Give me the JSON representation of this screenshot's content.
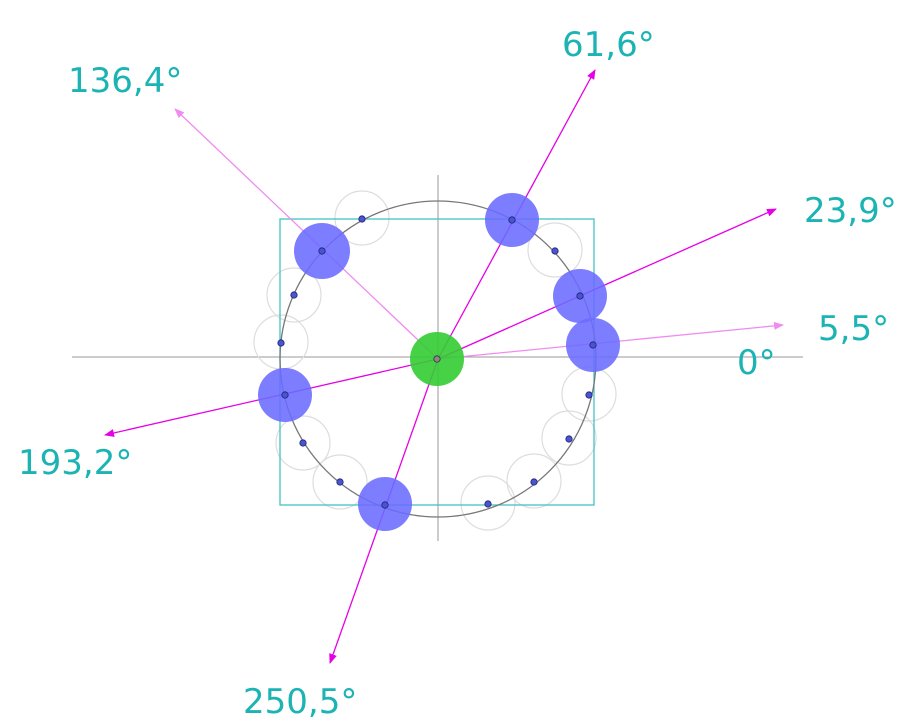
{
  "colors": {
    "label": "#1bb3b3",
    "arrow": "#e600e6",
    "arrow_light": "#f08cf0",
    "blue_disc": "#6b6bff",
    "green_disc": "#33cc33",
    "frame": "#44c2c2",
    "circle": "#777777",
    "axes": "#999999",
    "ghost_disc": "#dddddd",
    "dot": "#2b3aa8"
  },
  "labels": {
    "zero": "0°",
    "a1": "5,5°",
    "a2": "23,9°",
    "a3": "61,6°",
    "a4": "136,4°",
    "a5": "193,2°",
    "a6": "250,5°"
  },
  "angles_deg": [
    5.5,
    23.9,
    61.6,
    136.4,
    193.2,
    250.5
  ]
}
